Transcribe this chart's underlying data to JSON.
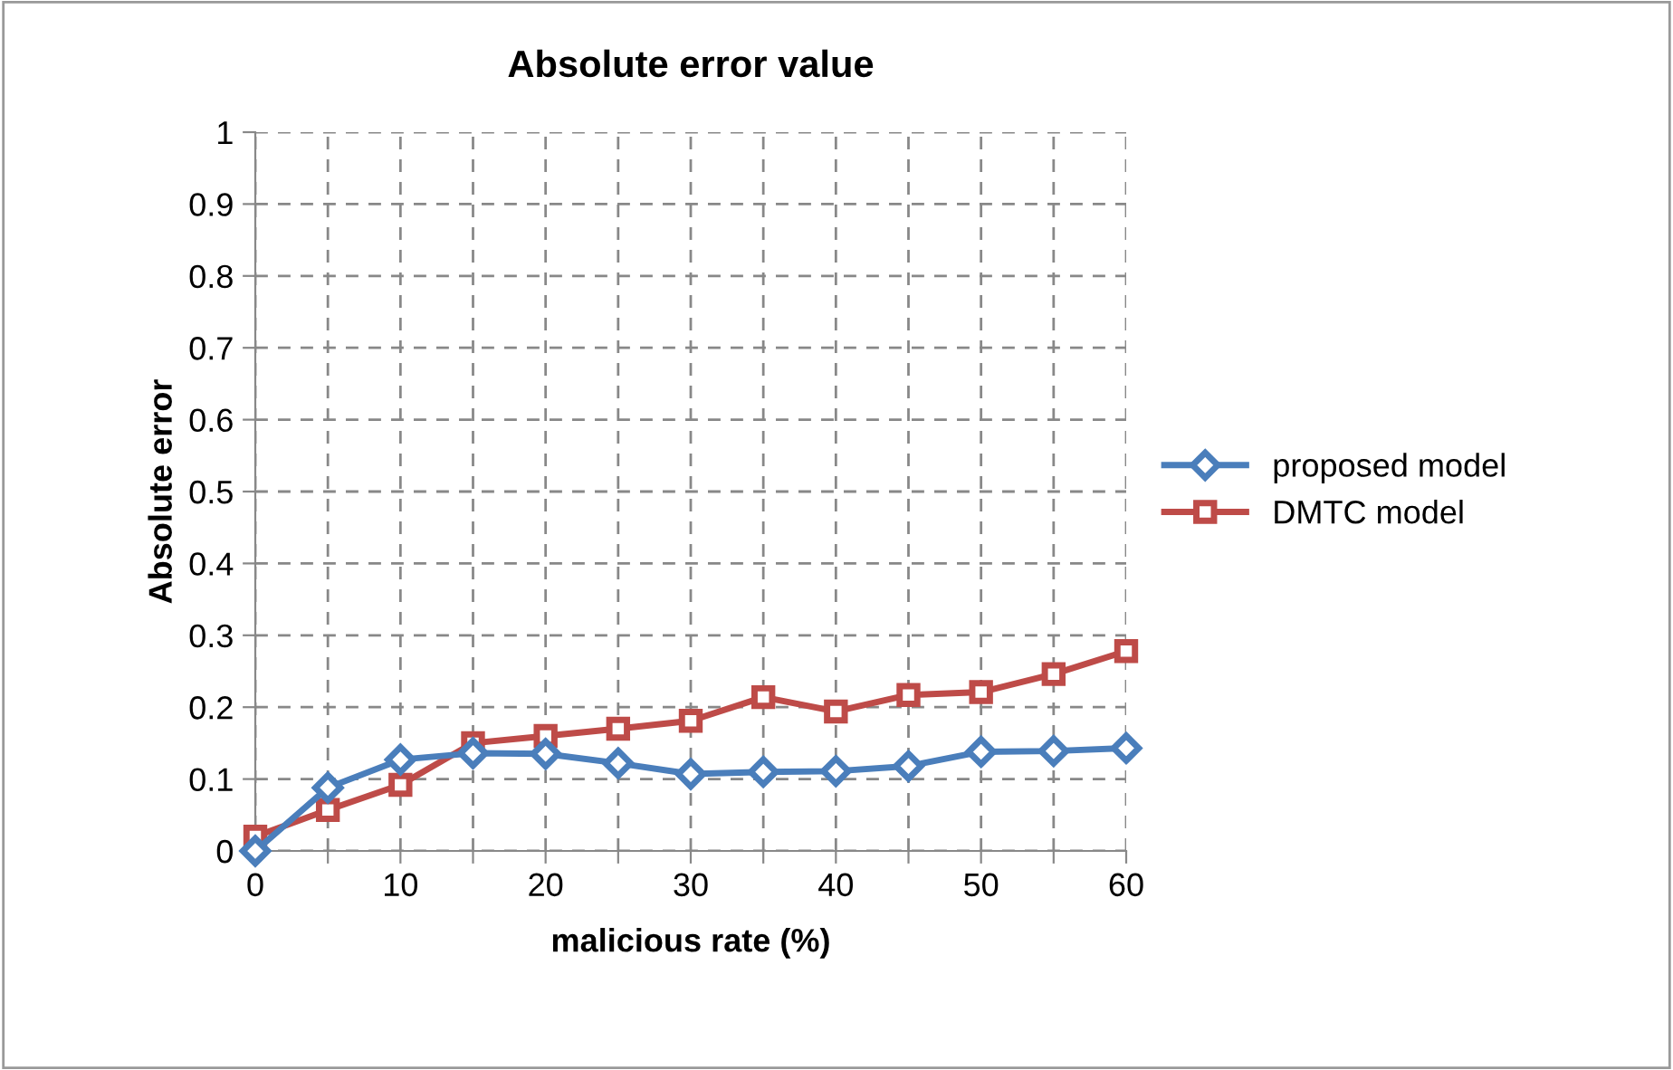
{
  "chart_data": {
    "type": "line",
    "title": "Absolute error value",
    "xlabel": "malicious rate (%)",
    "ylabel": "Absolute error",
    "x": [
      0,
      5,
      10,
      15,
      20,
      25,
      30,
      35,
      40,
      45,
      50,
      55,
      60
    ],
    "series": [
      {
        "name": "proposed model",
        "color": "#4a7ebb",
        "marker": "diamond",
        "values": [
          0,
          0.088,
          0.127,
          0.136,
          0.135,
          0.122,
          0.107,
          0.11,
          0.111,
          0.118,
          0.138,
          0.139,
          0.143
        ]
      },
      {
        "name": "DMTC model",
        "color": "#be4b48",
        "marker": "square",
        "values": [
          0.02,
          0.057,
          0.092,
          0.15,
          0.16,
          0.17,
          0.181,
          0.214,
          0.194,
          0.217,
          0.221,
          0.246,
          0.278
        ]
      }
    ],
    "xlim": [
      0,
      60
    ],
    "xticks": [
      0,
      {
        "value": 5,
        "label": null
      },
      10,
      {
        "value": 15,
        "label": null
      },
      20,
      {
        "value": 25,
        "label": null
      },
      30,
      {
        "value": 35,
        "label": null
      },
      40,
      {
        "value": 45,
        "label": null
      },
      50,
      {
        "value": 55,
        "label": null
      },
      60
    ],
    "ylim": [
      0,
      1
    ],
    "yticks": [
      0,
      0.1,
      0.2,
      0.3,
      0.4,
      0.5,
      0.6,
      0.7,
      0.8,
      0.9,
      1
    ],
    "grid": true,
    "legend": "right",
    "line_style": "solid"
  }
}
